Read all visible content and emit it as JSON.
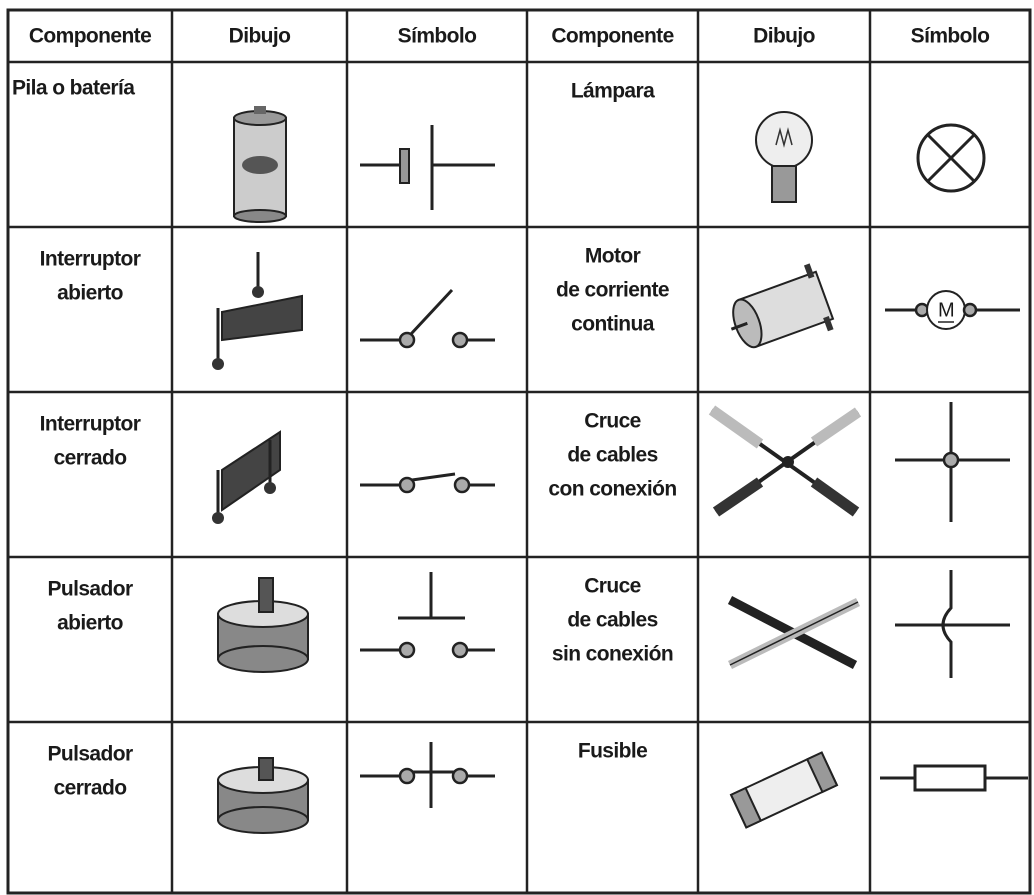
{
  "table": {
    "header": [
      "Componente",
      "Dibujo",
      "Símbolo",
      "Componente",
      "Dibujo",
      "Símbolo"
    ],
    "rows": [
      {
        "left": [
          "Pila o batería"
        ],
        "right": [
          "Lámpara"
        ]
      },
      {
        "left": [
          "Interruptor",
          "abierto"
        ],
        "right": [
          "Motor",
          "de corriente",
          "continua"
        ]
      },
      {
        "left": [
          "Interruptor",
          "cerrado"
        ],
        "right": [
          "Cruce",
          "de cables",
          "con conexión"
        ]
      },
      {
        "left": [
          "Pulsador",
          "abierto"
        ],
        "right": [
          "Cruce",
          "de cables",
          "sin conexión"
        ]
      },
      {
        "left": [
          "Pulsador",
          "cerrado"
        ],
        "right": [
          "Fusible"
        ]
      }
    ],
    "motor_symbol_label": "M"
  }
}
